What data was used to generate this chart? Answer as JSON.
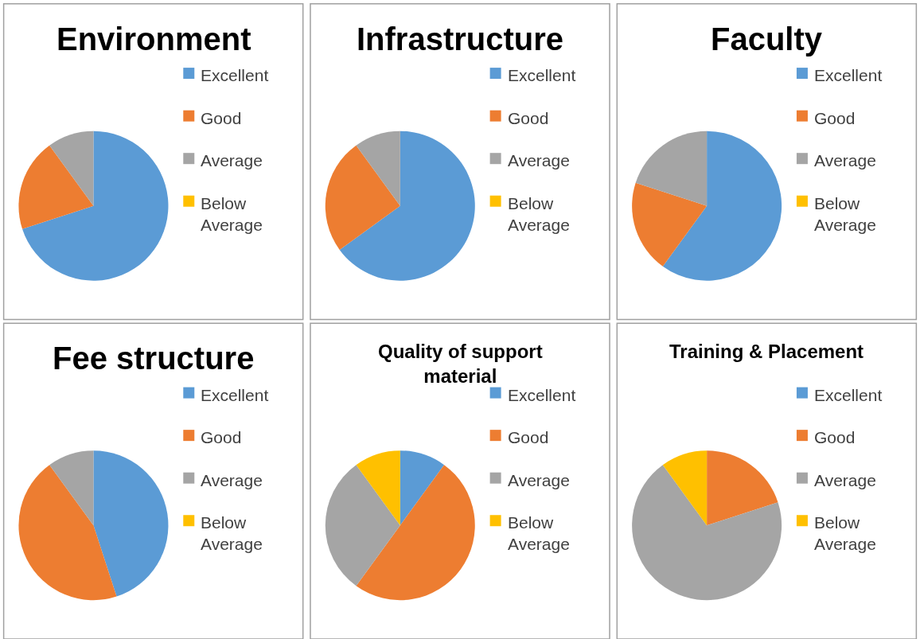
{
  "chart_data": [
    {
      "type": "pie",
      "title": "Environment",
      "categories": [
        "Excellent",
        "Good",
        "Average",
        "Below Average"
      ],
      "values": [
        70,
        20,
        10,
        0
      ],
      "colors": [
        "#5b9bd5",
        "#ed7d31",
        "#a5a5a5",
        "#ffc000"
      ],
      "legend": "right"
    },
    {
      "type": "pie",
      "title": "Infrastructure",
      "categories": [
        "Excellent",
        "Good",
        "Average",
        "Below Average"
      ],
      "values": [
        65,
        25,
        10,
        0
      ],
      "colors": [
        "#5b9bd5",
        "#ed7d31",
        "#a5a5a5",
        "#ffc000"
      ],
      "legend": "right"
    },
    {
      "type": "pie",
      "title": "Faculty",
      "categories": [
        "Excellent",
        "Good",
        "Average",
        "Below Average"
      ],
      "values": [
        60,
        20,
        20,
        0
      ],
      "colors": [
        "#5b9bd5",
        "#ed7d31",
        "#a5a5a5",
        "#ffc000"
      ],
      "legend": "right"
    },
    {
      "type": "pie",
      "title": "Fee structure",
      "categories": [
        "Excellent",
        "Good",
        "Average",
        "Below Average"
      ],
      "values": [
        45,
        45,
        10,
        0
      ],
      "colors": [
        "#5b9bd5",
        "#ed7d31",
        "#a5a5a5",
        "#ffc000"
      ],
      "legend": "right"
    },
    {
      "type": "pie",
      "title": "Quality of support material",
      "categories": [
        "Excellent",
        "Good",
        "Average",
        "Below Average"
      ],
      "values": [
        10,
        50,
        30,
        10
      ],
      "colors": [
        "#5b9bd5",
        "#ed7d31",
        "#a5a5a5",
        "#ffc000"
      ],
      "legend": "right"
    },
    {
      "type": "pie",
      "title": "Training & Placement",
      "categories": [
        "Excellent",
        "Good",
        "Average",
        "Below Average"
      ],
      "values": [
        0,
        20,
        70,
        10
      ],
      "colors": [
        "#5b9bd5",
        "#ed7d31",
        "#a5a5a5",
        "#ffc000"
      ],
      "legend": "right"
    }
  ]
}
